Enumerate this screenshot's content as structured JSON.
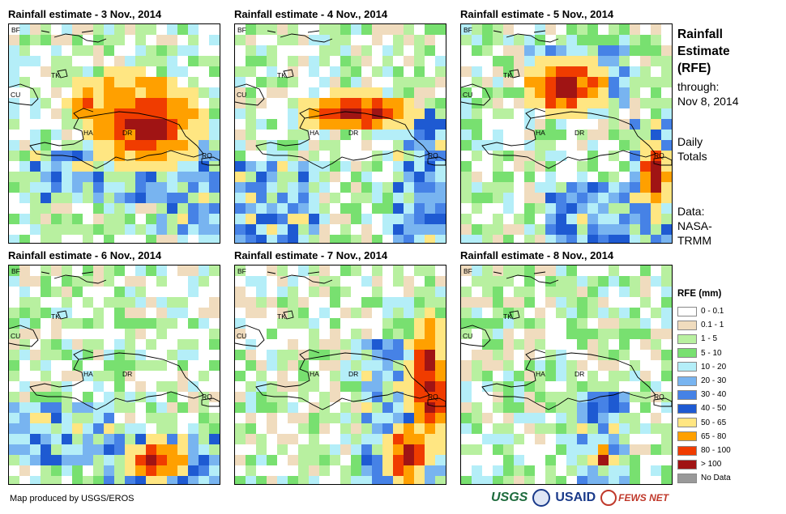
{
  "panels": [
    {
      "title": "Rainfall estimate - 3 Nov., 2014",
      "seed": 3,
      "hot": [
        [
          0.55,
          0.35,
          0.28,
          0.15
        ],
        [
          0.65,
          0.45,
          0.3,
          0.22
        ]
      ],
      "cool": [
        [
          0.1,
          0.55,
          0.95,
          0.8
        ],
        [
          0.7,
          0.5,
          1.0,
          0.95
        ]
      ]
    },
    {
      "title": "Rainfall estimate - 4 Nov., 2014",
      "seed": 4,
      "hot": [
        [
          0.58,
          0.4,
          0.3,
          0.1
        ]
      ],
      "cool": [
        [
          0.75,
          0.4,
          1.0,
          1.0
        ],
        [
          0.0,
          0.6,
          0.4,
          1.0
        ]
      ]
    },
    {
      "title": "Rainfall estimate - 5 Nov., 2014",
      "seed": 5,
      "hot": [
        [
          0.5,
          0.28,
          0.22,
          0.14
        ],
        [
          0.92,
          0.68,
          0.08,
          0.18
        ]
      ],
      "cool": [
        [
          0.4,
          0.7,
          1.0,
          1.0
        ],
        [
          0.8,
          0.45,
          1.0,
          0.8
        ],
        [
          0.3,
          0.1,
          0.8,
          0.4
        ]
      ]
    },
    {
      "title": "Rainfall estimate - 6 Nov., 2014",
      "seed": 6,
      "hot": [
        [
          0.7,
          0.88,
          0.15,
          0.1
        ]
      ],
      "cool": [
        [
          0.45,
          0.75,
          1.0,
          1.0
        ],
        [
          0.0,
          0.6,
          0.5,
          0.9
        ]
      ]
    },
    {
      "title": "Rainfall estimate - 7 Nov., 2014",
      "seed": 7,
      "hot": [
        [
          0.92,
          0.55,
          0.1,
          0.35
        ],
        [
          0.82,
          0.85,
          0.12,
          0.15
        ]
      ],
      "cool": [
        [
          0.6,
          0.35,
          1.0,
          1.0
        ]
      ]
    },
    {
      "title": "Rainfall estimate - 8 Nov., 2014",
      "seed": 8,
      "hot": [
        [
          0.68,
          0.86,
          0.05,
          0.06
        ]
      ],
      "cool": [
        [
          0.55,
          0.55,
          0.8,
          1.0
        ]
      ]
    }
  ],
  "labels": {
    "bf": "BF",
    "tk": "TK",
    "cu": "CU",
    "ha": "HA",
    "dr": "DR",
    "rq": "RQ"
  },
  "side": {
    "title1": "Rainfall",
    "title2": "Estimate",
    "title3": "(RFE)",
    "through": "through:",
    "date": "Nov 8, 2014",
    "daily": "Daily",
    "totals": "Totals",
    "data": "Data:",
    "nasa": "NASA-",
    "trmm": "TRMM"
  },
  "legend": {
    "title": "RFE (mm)",
    "items": [
      {
        "label": "0 - 0.1",
        "color": "#ffffff"
      },
      {
        "label": "0.1 - 1",
        "color": "#f0dcbe"
      },
      {
        "label": "1 - 5",
        "color": "#b8f0a0"
      },
      {
        "label": "5 - 10",
        "color": "#78e070"
      },
      {
        "label": "10 - 20",
        "color": "#b4eef8"
      },
      {
        "label": "20 - 30",
        "color": "#78b4f0"
      },
      {
        "label": "30 - 40",
        "color": "#4682e6"
      },
      {
        "label": "40 - 50",
        "color": "#1e5ad2"
      },
      {
        "label": "50 - 65",
        "color": "#ffe682"
      },
      {
        "label": "65 - 80",
        "color": "#ffa000"
      },
      {
        "label": "80 - 100",
        "color": "#f03c00"
      },
      {
        "label": "> 100",
        "color": "#a01414"
      },
      {
        "label": "No Data",
        "color": "#999999"
      }
    ]
  },
  "footer": "Map produced by USGS/EROS",
  "logos": {
    "usgs": "USGS",
    "usaid": "USAID",
    "fews": "FEWS NET"
  }
}
